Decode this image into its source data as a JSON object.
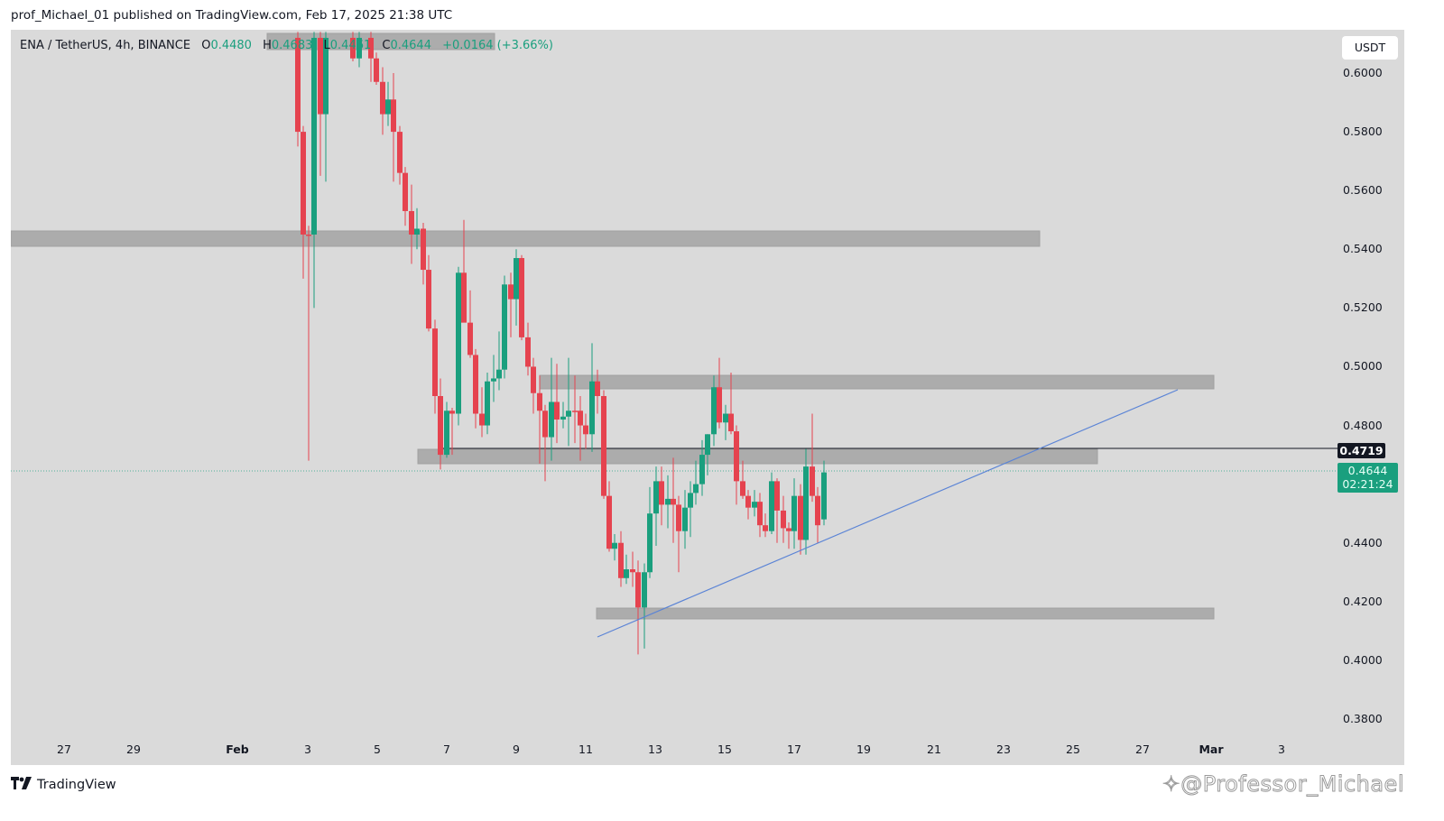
{
  "header": {
    "published": "prof_Michael_01 published on TradingView.com, Feb 17, 2025 21:38 UTC"
  },
  "legend": {
    "symbol": "ENA / TetherUS, 4h, BINANCE",
    "o_label": "O",
    "o_value": "0.4480",
    "h_label": "H",
    "h_value": "0.4683",
    "l_label": "L",
    "l_value": "0.4461",
    "c_label": "C",
    "c_value": "0.4644",
    "change": "+0.0164 (+3.66%)"
  },
  "price_axis": {
    "currency": "USDT",
    "ticks": [
      "0.6000",
      "0.5800",
      "0.5600",
      "0.5400",
      "0.5200",
      "0.5000",
      "0.4800",
      "0.4400",
      "0.4200",
      "0.4000",
      "0.3800"
    ],
    "line_label": "0.4719",
    "last_price": "0.4644",
    "countdown": "02:21:24"
  },
  "time_axis": {
    "ticks": [
      "27",
      "29",
      "Feb",
      "3",
      "5",
      "7",
      "9",
      "11",
      "13",
      "15",
      "17",
      "19",
      "21",
      "23",
      "25",
      "27",
      "Mar",
      "3"
    ]
  },
  "footer": {
    "brand": "TradingView",
    "logo": "17",
    "watermark": "@Professor_Michael"
  },
  "colors": {
    "up": "#1a9f7e",
    "down": "#e5434f",
    "background": "#dadada",
    "zone": "#a9a9a9",
    "trendline": "#5b84d6",
    "hline": "#131722"
  },
  "chart_data": {
    "type": "candlestick",
    "title": "ENA / TetherUS, 4h, BINANCE",
    "xlabel": "",
    "ylabel": "USDT",
    "ylim": [
      0.37,
      0.61
    ],
    "x_ticks": [
      "Jan 27",
      "Jan 29",
      "Feb 1",
      "Feb 3",
      "Feb 5",
      "Feb 7",
      "Feb 9",
      "Feb 11",
      "Feb 13",
      "Feb 15",
      "Feb 17",
      "Feb 19",
      "Feb 21",
      "Feb 23",
      "Feb 25",
      "Feb 27",
      "Mar 1",
      "Mar 3"
    ],
    "grid": false,
    "last": {
      "open": 0.448,
      "high": 0.4683,
      "low": 0.4461,
      "close": 0.4644,
      "change": 0.0164,
      "change_pct": 3.66
    },
    "horizontal_line": 0.4719,
    "zones": [
      {
        "from_x": "Jan 25",
        "to_x": "Feb 23",
        "low": 0.541,
        "high": 0.546
      },
      {
        "from_x": "Feb 10",
        "to_x": "Feb 28",
        "low": 0.4925,
        "high": 0.497
      },
      {
        "from_x": "Feb 6",
        "to_x": "Feb 25",
        "low": 0.4645,
        "high": 0.4695
      },
      {
        "from_x": "Feb 11",
        "to_x": "Feb 28",
        "low": 0.4145,
        "high": 0.418
      },
      {
        "from_x": "Feb 2",
        "to_x": "Feb 8",
        "low": 0.604,
        "high": 0.611
      }
    ],
    "trendline": {
      "from": {
        "x": "Feb 11",
        "y": 0.408
      },
      "to": {
        "x": "Feb 28",
        "y": 0.492
      }
    },
    "candles": [
      {
        "x": 330,
        "o": 0.612,
        "h": 0.614,
        "l": 0.575,
        "c": 0.58,
        "up": false
      },
      {
        "x": 336,
        "o": 0.58,
        "h": 0.582,
        "l": 0.53,
        "c": 0.545,
        "up": false
      },
      {
        "x": 342,
        "o": 0.545,
        "h": 0.548,
        "l": 0.468,
        "c": 0.545,
        "up": false
      },
      {
        "x": 348,
        "o": 0.545,
        "h": 0.614,
        "l": 0.52,
        "c": 0.612,
        "up": true
      },
      {
        "x": 355,
        "o": 0.612,
        "h": 0.614,
        "l": 0.565,
        "c": 0.586,
        "up": false
      },
      {
        "x": 361,
        "o": 0.586,
        "h": 0.614,
        "l": 0.563,
        "c": 0.612,
        "up": true
      },
      {
        "x": 391,
        "o": 0.612,
        "h": 0.614,
        "l": 0.604,
        "c": 0.605,
        "up": false
      },
      {
        "x": 398,
        "o": 0.605,
        "h": 0.614,
        "l": 0.602,
        "c": 0.612,
        "up": true
      },
      {
        "x": 411,
        "o": 0.612,
        "h": 0.614,
        "l": 0.597,
        "c": 0.605,
        "up": false
      },
      {
        "x": 417,
        "o": 0.605,
        "h": 0.607,
        "l": 0.596,
        "c": 0.597,
        "up": false
      },
      {
        "x": 424,
        "o": 0.597,
        "h": 0.602,
        "l": 0.579,
        "c": 0.586,
        "up": false
      },
      {
        "x": 430,
        "o": 0.586,
        "h": 0.597,
        "l": 0.582,
        "c": 0.591,
        "up": true
      },
      {
        "x": 436,
        "o": 0.591,
        "h": 0.6,
        "l": 0.563,
        "c": 0.58,
        "up": false
      },
      {
        "x": 443,
        "o": 0.58,
        "h": 0.582,
        "l": 0.562,
        "c": 0.566,
        "up": false
      },
      {
        "x": 449,
        "o": 0.566,
        "h": 0.568,
        "l": 0.548,
        "c": 0.553,
        "up": false
      },
      {
        "x": 456,
        "o": 0.553,
        "h": 0.562,
        "l": 0.535,
        "c": 0.545,
        "up": false
      },
      {
        "x": 462,
        "o": 0.545,
        "h": 0.554,
        "l": 0.54,
        "c": 0.547,
        "up": true
      },
      {
        "x": 469,
        "o": 0.547,
        "h": 0.549,
        "l": 0.528,
        "c": 0.533,
        "up": false
      },
      {
        "x": 475,
        "o": 0.533,
        "h": 0.538,
        "l": 0.512,
        "c": 0.513,
        "up": false
      },
      {
        "x": 482,
        "o": 0.513,
        "h": 0.516,
        "l": 0.484,
        "c": 0.49,
        "up": false
      },
      {
        "x": 488,
        "o": 0.49,
        "h": 0.496,
        "l": 0.465,
        "c": 0.47,
        "up": false
      },
      {
        "x": 495,
        "o": 0.47,
        "h": 0.488,
        "l": 0.469,
        "c": 0.485,
        "up": true
      },
      {
        "x": 501,
        "o": 0.485,
        "h": 0.486,
        "l": 0.47,
        "c": 0.484,
        "up": false
      },
      {
        "x": 508,
        "o": 0.484,
        "h": 0.534,
        "l": 0.48,
        "c": 0.532,
        "up": true
      },
      {
        "x": 514,
        "o": 0.532,
        "h": 0.55,
        "l": 0.517,
        "c": 0.515,
        "up": false
      },
      {
        "x": 521,
        "o": 0.515,
        "h": 0.526,
        "l": 0.503,
        "c": 0.504,
        "up": false
      },
      {
        "x": 527,
        "o": 0.504,
        "h": 0.506,
        "l": 0.479,
        "c": 0.484,
        "up": false
      },
      {
        "x": 534,
        "o": 0.484,
        "h": 0.493,
        "l": 0.476,
        "c": 0.48,
        "up": false
      },
      {
        "x": 540,
        "o": 0.48,
        "h": 0.498,
        "l": 0.477,
        "c": 0.495,
        "up": true
      },
      {
        "x": 547,
        "o": 0.495,
        "h": 0.504,
        "l": 0.488,
        "c": 0.496,
        "up": true
      },
      {
        "x": 553,
        "o": 0.496,
        "h": 0.512,
        "l": 0.492,
        "c": 0.499,
        "up": true
      },
      {
        "x": 559,
        "o": 0.499,
        "h": 0.531,
        "l": 0.496,
        "c": 0.528,
        "up": true
      },
      {
        "x": 566,
        "o": 0.528,
        "h": 0.532,
        "l": 0.51,
        "c": 0.523,
        "up": false
      },
      {
        "x": 572,
        "o": 0.523,
        "h": 0.54,
        "l": 0.514,
        "c": 0.537,
        "up": true
      },
      {
        "x": 578,
        "o": 0.537,
        "h": 0.538,
        "l": 0.509,
        "c": 0.51,
        "up": false
      },
      {
        "x": 585,
        "o": 0.51,
        "h": 0.515,
        "l": 0.497,
        "c": 0.5,
        "up": false
      },
      {
        "x": 591,
        "o": 0.5,
        "h": 0.503,
        "l": 0.484,
        "c": 0.491,
        "up": false
      },
      {
        "x": 598,
        "o": 0.491,
        "h": 0.497,
        "l": 0.467,
        "c": 0.485,
        "up": false
      },
      {
        "x": 604,
        "o": 0.485,
        "h": 0.487,
        "l": 0.461,
        "c": 0.476,
        "up": false
      },
      {
        "x": 611,
        "o": 0.476,
        "h": 0.503,
        "l": 0.468,
        "c": 0.488,
        "up": true
      },
      {
        "x": 617,
        "o": 0.488,
        "h": 0.501,
        "l": 0.474,
        "c": 0.482,
        "up": false
      },
      {
        "x": 624,
        "o": 0.482,
        "h": 0.488,
        "l": 0.479,
        "c": 0.483,
        "up": true
      },
      {
        "x": 630,
        "o": 0.483,
        "h": 0.503,
        "l": 0.473,
        "c": 0.485,
        "up": true
      },
      {
        "x": 637,
        "o": 0.485,
        "h": 0.497,
        "l": 0.474,
        "c": 0.485,
        "up": false
      },
      {
        "x": 643,
        "o": 0.485,
        "h": 0.49,
        "l": 0.468,
        "c": 0.48,
        "up": false
      },
      {
        "x": 649,
        "o": 0.48,
        "h": 0.484,
        "l": 0.472,
        "c": 0.477,
        "up": false
      },
      {
        "x": 656,
        "o": 0.477,
        "h": 0.508,
        "l": 0.471,
        "c": 0.495,
        "up": true
      },
      {
        "x": 662,
        "o": 0.495,
        "h": 0.499,
        "l": 0.484,
        "c": 0.49,
        "up": false
      },
      {
        "x": 669,
        "o": 0.49,
        "h": 0.492,
        "l": 0.455,
        "c": 0.456,
        "up": false
      },
      {
        "x": 675,
        "o": 0.456,
        "h": 0.461,
        "l": 0.437,
        "c": 0.438,
        "up": false
      },
      {
        "x": 681,
        "o": 0.438,
        "h": 0.443,
        "l": 0.434,
        "c": 0.44,
        "up": true
      },
      {
        "x": 688,
        "o": 0.44,
        "h": 0.444,
        "l": 0.425,
        "c": 0.428,
        "up": false
      },
      {
        "x": 694,
        "o": 0.428,
        "h": 0.436,
        "l": 0.426,
        "c": 0.431,
        "up": true
      },
      {
        "x": 701,
        "o": 0.431,
        "h": 0.437,
        "l": 0.425,
        "c": 0.43,
        "up": false
      },
      {
        "x": 707,
        "o": 0.43,
        "h": 0.434,
        "l": 0.402,
        "c": 0.418,
        "up": false
      },
      {
        "x": 714,
        "o": 0.418,
        "h": 0.433,
        "l": 0.404,
        "c": 0.43,
        "up": true
      },
      {
        "x": 720,
        "o": 0.43,
        "h": 0.459,
        "l": 0.428,
        "c": 0.45,
        "up": true
      },
      {
        "x": 727,
        "o": 0.45,
        "h": 0.466,
        "l": 0.439,
        "c": 0.461,
        "up": true
      },
      {
        "x": 733,
        "o": 0.461,
        "h": 0.466,
        "l": 0.446,
        "c": 0.453,
        "up": false
      },
      {
        "x": 740,
        "o": 0.453,
        "h": 0.463,
        "l": 0.445,
        "c": 0.455,
        "up": true
      },
      {
        "x": 746,
        "o": 0.455,
        "h": 0.469,
        "l": 0.44,
        "c": 0.453,
        "up": false
      },
      {
        "x": 752,
        "o": 0.453,
        "h": 0.456,
        "l": 0.43,
        "c": 0.444,
        "up": false
      },
      {
        "x": 759,
        "o": 0.444,
        "h": 0.458,
        "l": 0.438,
        "c": 0.452,
        "up": true
      },
      {
        "x": 765,
        "o": 0.452,
        "h": 0.461,
        "l": 0.442,
        "c": 0.457,
        "up": true
      },
      {
        "x": 771,
        "o": 0.457,
        "h": 0.468,
        "l": 0.453,
        "c": 0.46,
        "up": true
      },
      {
        "x": 778,
        "o": 0.46,
        "h": 0.475,
        "l": 0.456,
        "c": 0.47,
        "up": true
      },
      {
        "x": 784,
        "o": 0.47,
        "h": 0.477,
        "l": 0.463,
        "c": 0.477,
        "up": true
      },
      {
        "x": 791,
        "o": 0.477,
        "h": 0.497,
        "l": 0.473,
        "c": 0.493,
        "up": true
      },
      {
        "x": 797,
        "o": 0.493,
        "h": 0.503,
        "l": 0.479,
        "c": 0.481,
        "up": false
      },
      {
        "x": 804,
        "o": 0.481,
        "h": 0.487,
        "l": 0.475,
        "c": 0.484,
        "up": true
      },
      {
        "x": 810,
        "o": 0.484,
        "h": 0.498,
        "l": 0.477,
        "c": 0.478,
        "up": false
      },
      {
        "x": 816,
        "o": 0.478,
        "h": 0.48,
        "l": 0.453,
        "c": 0.461,
        "up": false
      },
      {
        "x": 823,
        "o": 0.461,
        "h": 0.468,
        "l": 0.455,
        "c": 0.456,
        "up": false
      },
      {
        "x": 829,
        "o": 0.456,
        "h": 0.458,
        "l": 0.448,
        "c": 0.452,
        "up": false
      },
      {
        "x": 836,
        "o": 0.452,
        "h": 0.458,
        "l": 0.449,
        "c": 0.454,
        "up": true
      },
      {
        "x": 842,
        "o": 0.454,
        "h": 0.457,
        "l": 0.442,
        "c": 0.446,
        "up": false
      },
      {
        "x": 848,
        "o": 0.446,
        "h": 0.45,
        "l": 0.442,
        "c": 0.444,
        "up": false
      },
      {
        "x": 855,
        "o": 0.444,
        "h": 0.464,
        "l": 0.443,
        "c": 0.461,
        "up": true
      },
      {
        "x": 861,
        "o": 0.461,
        "h": 0.462,
        "l": 0.44,
        "c": 0.451,
        "up": false
      },
      {
        "x": 868,
        "o": 0.451,
        "h": 0.456,
        "l": 0.44,
        "c": 0.445,
        "up": false
      },
      {
        "x": 874,
        "o": 0.445,
        "h": 0.447,
        "l": 0.438,
        "c": 0.444,
        "up": false
      },
      {
        "x": 880,
        "o": 0.444,
        "h": 0.462,
        "l": 0.438,
        "c": 0.456,
        "up": true
      },
      {
        "x": 887,
        "o": 0.456,
        "h": 0.46,
        "l": 0.436,
        "c": 0.441,
        "up": false
      },
      {
        "x": 893,
        "o": 0.441,
        "h": 0.472,
        "l": 0.436,
        "c": 0.466,
        "up": true
      },
      {
        "x": 900,
        "o": 0.466,
        "h": 0.484,
        "l": 0.454,
        "c": 0.456,
        "up": false
      },
      {
        "x": 906,
        "o": 0.456,
        "h": 0.459,
        "l": 0.44,
        "c": 0.446,
        "up": false
      },
      {
        "x": 913,
        "o": 0.448,
        "h": 0.468,
        "l": 0.446,
        "c": 0.464,
        "up": true
      }
    ]
  }
}
